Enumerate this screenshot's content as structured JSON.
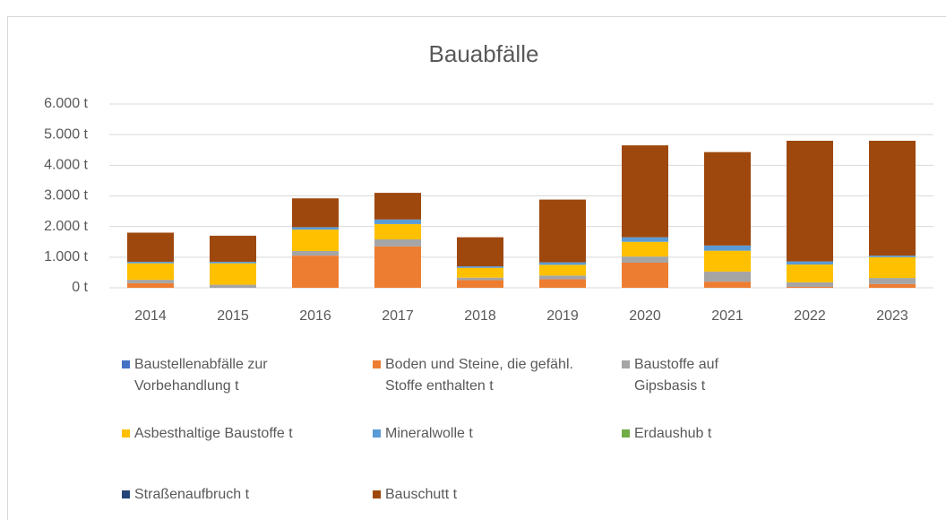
{
  "chart_data": {
    "type": "bar",
    "stacked": true,
    "title": "Bauabfälle",
    "categories": [
      "2014",
      "2015",
      "2016",
      "2017",
      "2018",
      "2019",
      "2020",
      "2021",
      "2022",
      "2023"
    ],
    "series": [
      {
        "name": "Baustellenabfälle zur Vorbehandlung t",
        "color": "#4472c4",
        "values": [
          0,
          0,
          0,
          0,
          0,
          0,
          0,
          0,
          0,
          0
        ]
      },
      {
        "name": "Boden und Steine, die gefähl. Stoffe enthalten t",
        "color": "#ed7d31",
        "values": [
          150,
          0,
          1050,
          1350,
          250,
          280,
          820,
          200,
          30,
          120
        ]
      },
      {
        "name": "Baustoffe auf Gipsbasis t",
        "color": "#a5a5a5",
        "values": [
          110,
          100,
          150,
          230,
          80,
          120,
          200,
          330,
          150,
          200
        ]
      },
      {
        "name": "Asbesthaltige Baustoffe t",
        "color": "#ffc000",
        "values": [
          540,
          700,
          700,
          500,
          320,
          350,
          480,
          680,
          580,
          680
        ]
      },
      {
        "name": "Mineralwolle t",
        "color": "#5b9bd5",
        "values": [
          50,
          50,
          80,
          150,
          50,
          80,
          150,
          170,
          100,
          50
        ]
      },
      {
        "name": "Erdaushub t",
        "color": "#70ad47",
        "values": [
          0,
          0,
          0,
          0,
          0,
          0,
          0,
          0,
          0,
          0
        ]
      },
      {
        "name": "Straßenaufbruch t",
        "color": "#264478",
        "values": [
          0,
          0,
          0,
          0,
          0,
          0,
          0,
          0,
          0,
          0
        ]
      },
      {
        "name": "Bauschutt t",
        "color": "#9e480e",
        "values": [
          950,
          850,
          940,
          870,
          950,
          2050,
          3000,
          3050,
          3940,
          3750
        ]
      }
    ],
    "ylim": [
      0,
      6000
    ],
    "yticks": [
      {
        "value": 0,
        "label": "0 t"
      },
      {
        "value": 1000,
        "label": "1.000 t"
      },
      {
        "value": 2000,
        "label": "2.000 t"
      },
      {
        "value": 3000,
        "label": "3.000 t"
      },
      {
        "value": 4000,
        "label": "4.000 t"
      },
      {
        "value": 5000,
        "label": "5.000 t"
      },
      {
        "value": 6000,
        "label": "6.000 t"
      }
    ],
    "grid": true,
    "legend": "bottom"
  }
}
